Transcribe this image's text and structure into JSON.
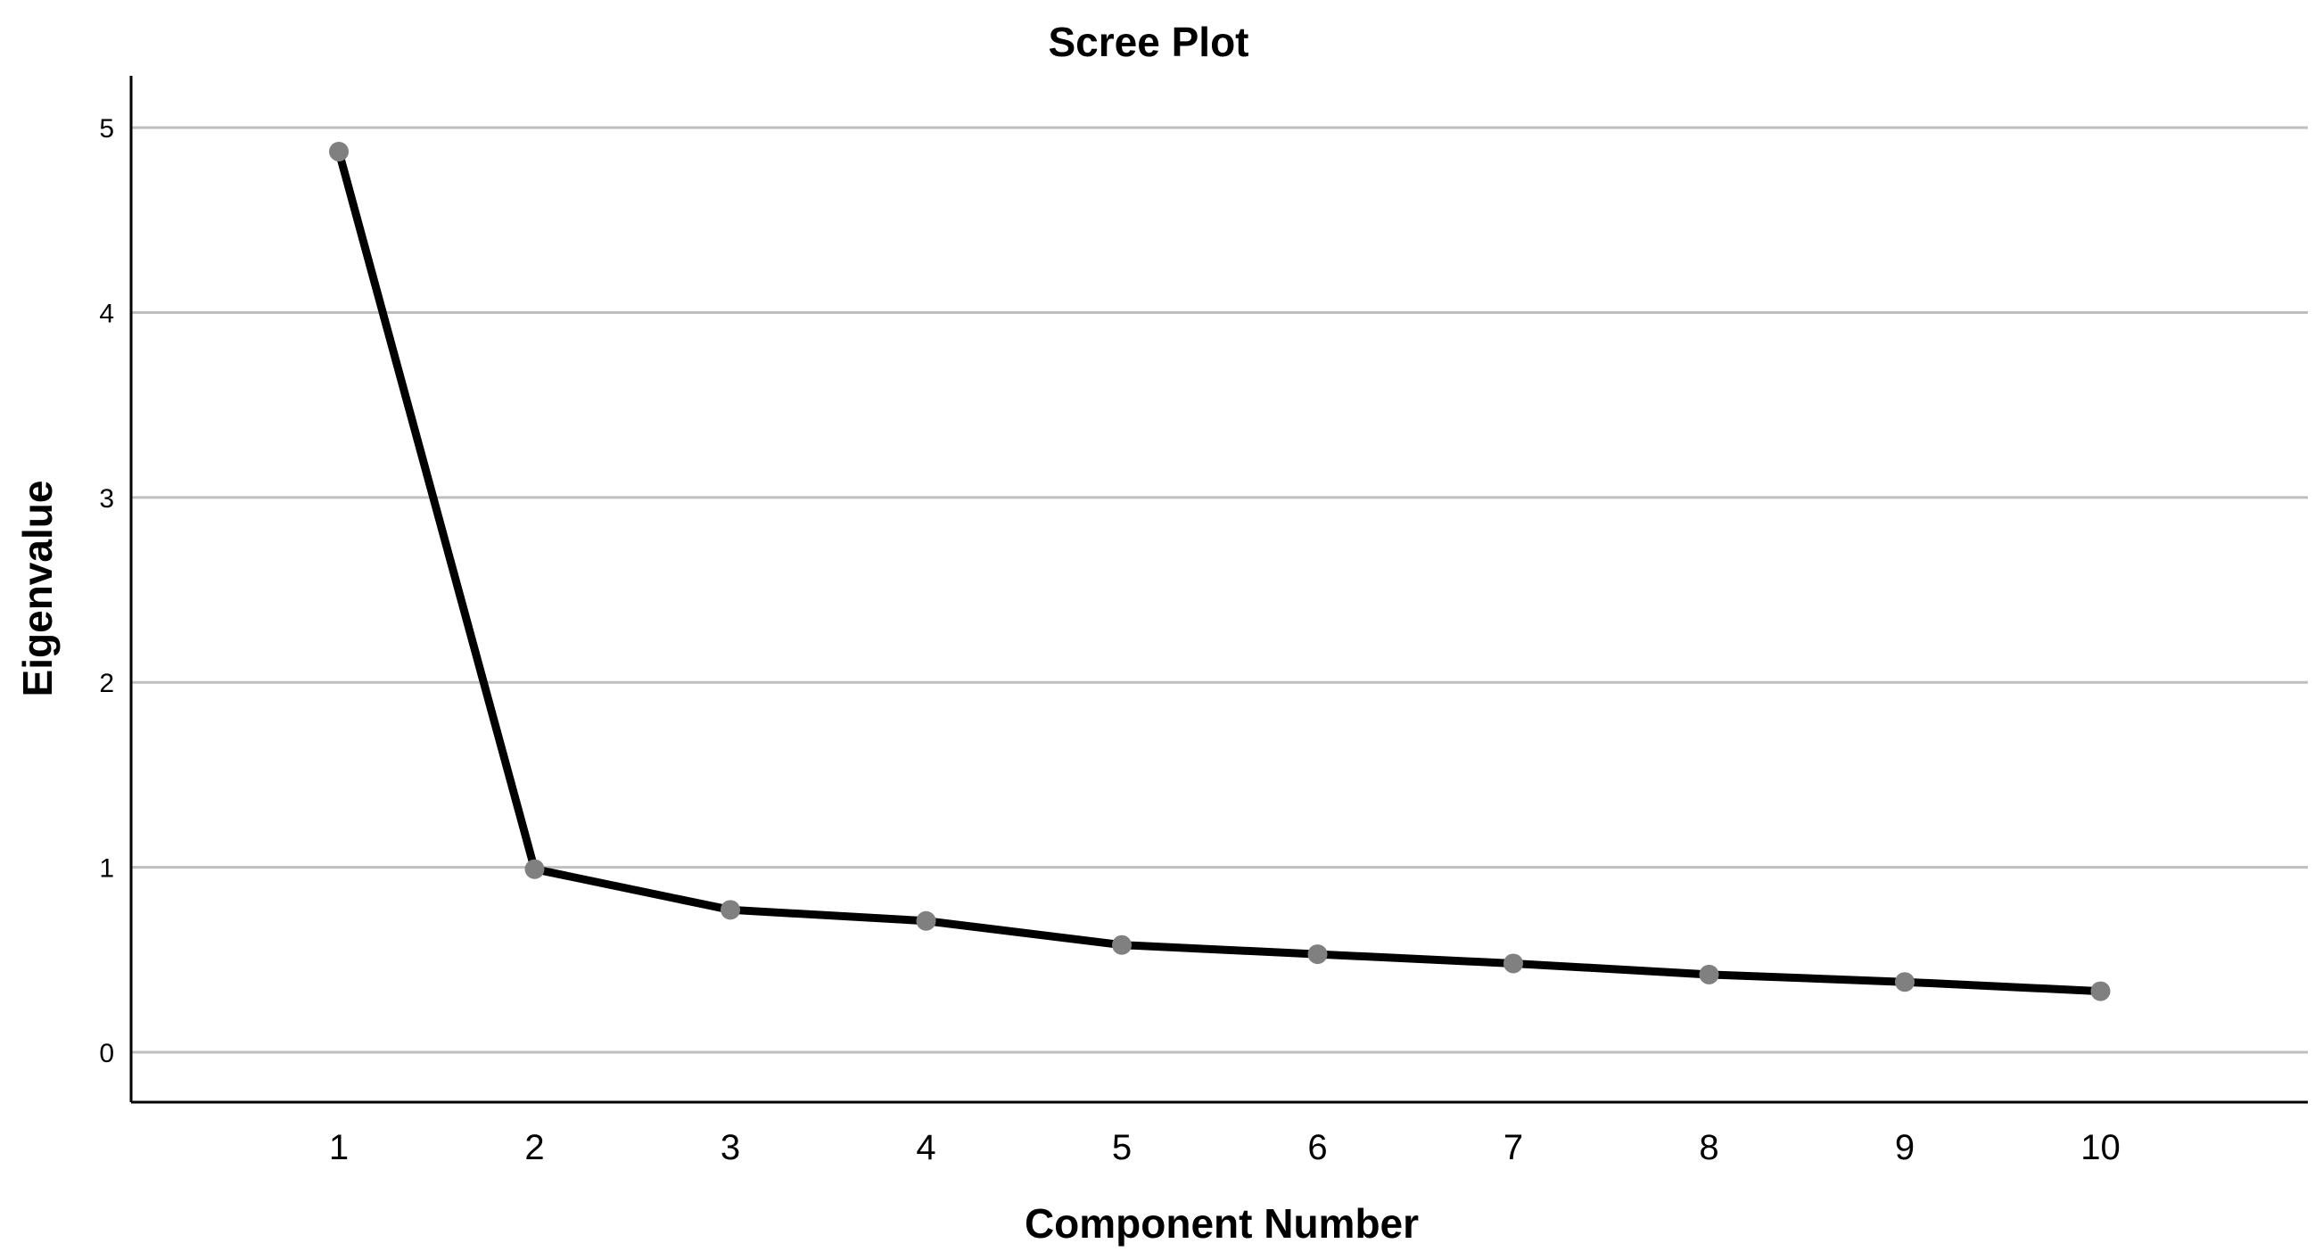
{
  "chart_data": {
    "type": "line",
    "title": "Scree Plot",
    "xlabel": "Component Number",
    "ylabel": "Eigenvalue",
    "categories": [
      "1",
      "2",
      "3",
      "4",
      "5",
      "6",
      "7",
      "8",
      "9",
      "10"
    ],
    "series": [
      {
        "values": [
          4.87,
          0.99,
          0.77,
          0.71,
          0.58,
          0.53,
          0.48,
          0.42,
          0.38,
          0.33
        ]
      }
    ],
    "yticks": [
      "0",
      "1",
      "2",
      "3",
      "4",
      "5"
    ],
    "ylim": [
      -0.27,
      5.28
    ],
    "grid": true,
    "legend": "none",
    "colors": {
      "line": "#000000",
      "marker": "#808080",
      "grid": "#bfbfbf",
      "axis": "#000000",
      "background": "#ffffff"
    }
  }
}
